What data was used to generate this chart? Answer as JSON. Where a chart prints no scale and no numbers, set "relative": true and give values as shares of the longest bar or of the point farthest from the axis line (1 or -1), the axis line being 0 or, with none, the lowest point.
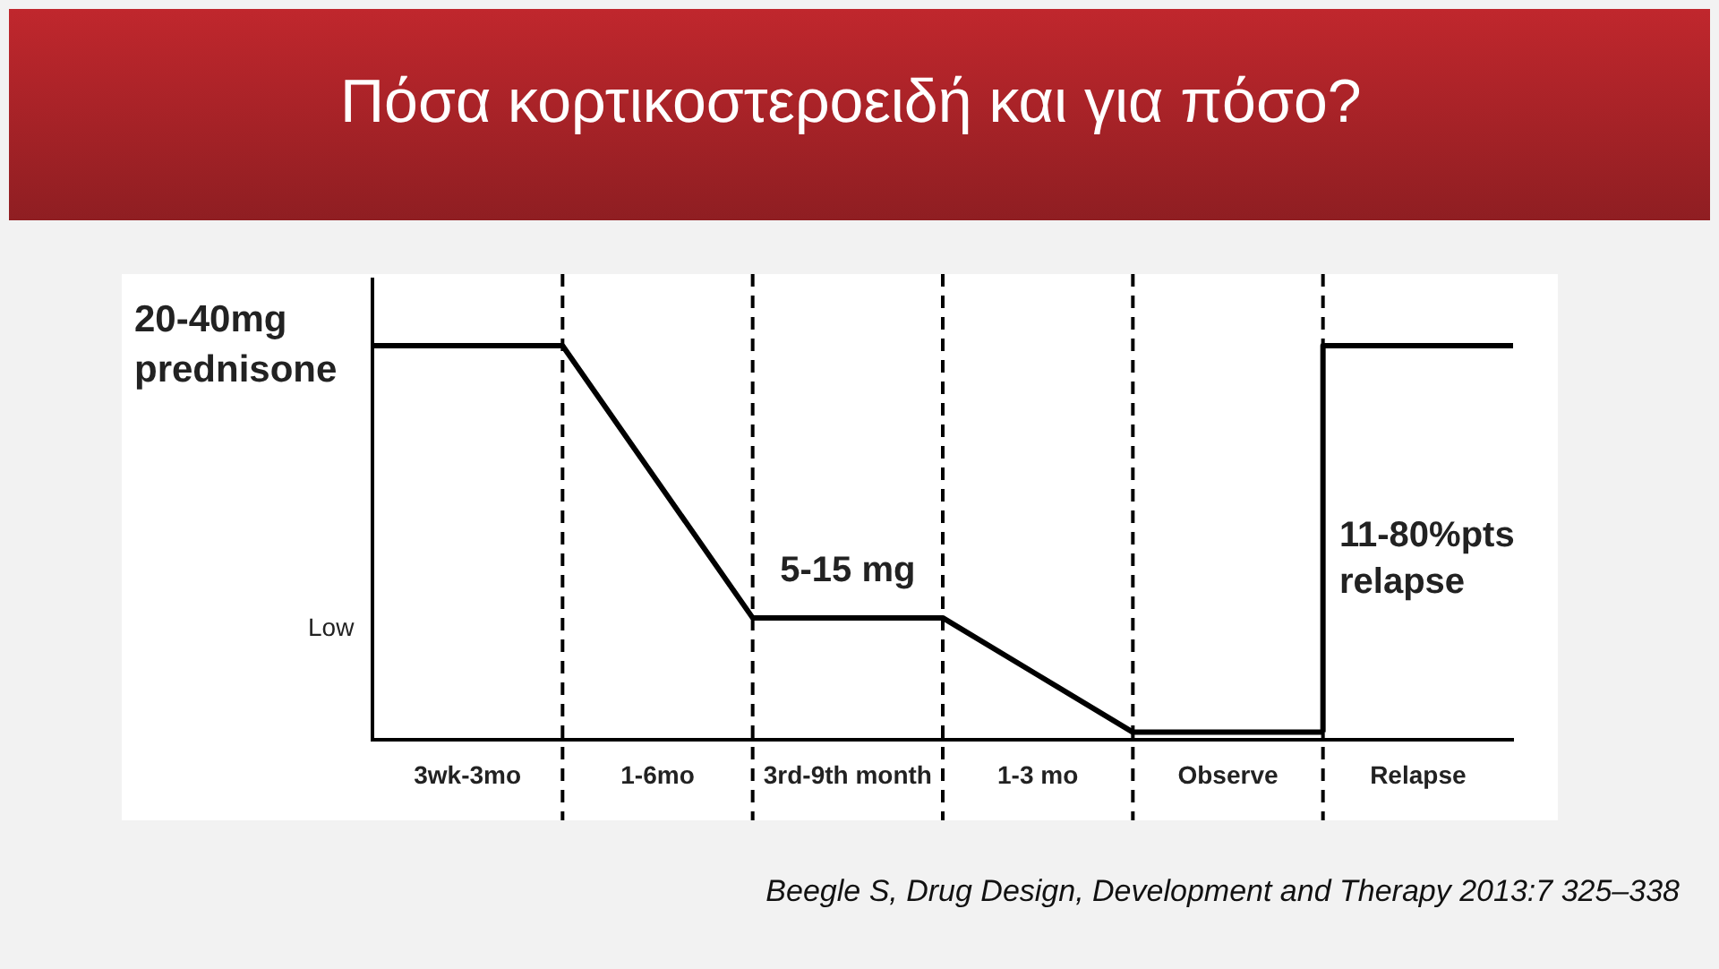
{
  "chart_data": {
    "type": "line",
    "title": "Πόσα κορτικοστεροειδή και για πόσο?",
    "relative": true,
    "categories": [
      null,
      "3wk-3mo",
      null,
      "1-6mo",
      null,
      "3rd-9th month",
      null,
      "1-3 mo",
      null,
      "Observe",
      null,
      "Relapse",
      null
    ],
    "series": [
      {
        "color": "#000000",
        "values": [
          1,
          1,
          1,
          0.655,
          0.31,
          0.31,
          0.31,
          0.165,
          0.02,
          0.02,
          0.02,
          null,
          null
        ]
      },
      {
        "type": "step",
        "color": "#000000",
        "values": [
          null,
          null,
          null,
          null,
          null,
          null,
          null,
          null,
          null,
          null,
          0.02,
          1,
          1
        ]
      }
    ],
    "grid": "x",
    "legend": false,
    "marker": "none",
    "line_style": "solid",
    "annotations": [
      "20-40mg prednisone",
      "Low",
      "11-80%pts relapse",
      {
        "text": "5-15 mg",
        "x": "3rd-9th month",
        "y": 0.31
      },
      "Beegle S,  Drug Design, Development and Therapy 2013:7 325–338"
    ]
  }
}
